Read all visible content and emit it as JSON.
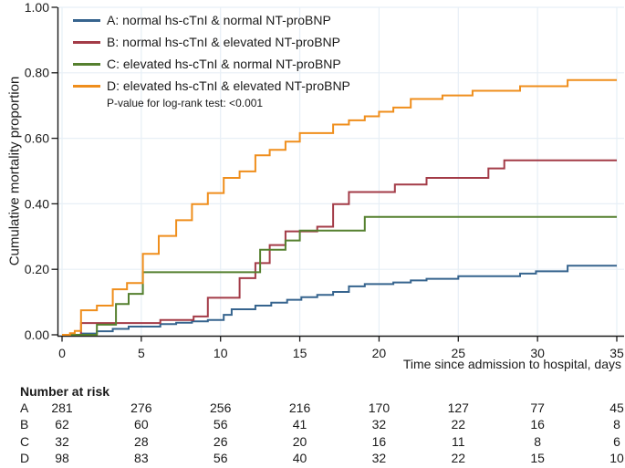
{
  "figure": {
    "kind": "kaplan-meier-cumulative-mortality-plot",
    "background": "#ffffff"
  },
  "colors": {
    "grid": "#e7eff6",
    "axis": "#1a1a1a",
    "text": "#1a1a1a",
    "series_a": "#36648e",
    "series_b": "#a33b47",
    "series_c": "#55802f",
    "series_d": "#ef8e1c"
  },
  "chart_data": {
    "type": "line",
    "subtype": "step-kaplan-meier",
    "title": "",
    "xlabel": "Time since admission to hospital, days",
    "ylabel": "Cumulative mortality proportion",
    "annotation": "P-value for log-rank test: <0.001",
    "xlim": [
      0,
      35
    ],
    "ylim": [
      0,
      1
    ],
    "xticks": [
      0,
      5,
      10,
      15,
      20,
      25,
      30,
      35
    ],
    "yticks": [
      "0.00",
      "0.20",
      "0.40",
      "0.60",
      "0.80",
      "1.00"
    ],
    "grid": true,
    "legend_position": "top-left",
    "series": [
      {
        "id": "A",
        "name": "A: normal hs-cTnI & normal NT-proBNP",
        "color": "#36648e",
        "steps": [
          [
            0,
            0
          ],
          [
            1.2,
            0.004
          ],
          [
            2.2,
            0.011
          ],
          [
            3.2,
            0.018
          ],
          [
            4.2,
            0.025
          ],
          [
            6.2,
            0.033
          ],
          [
            7.2,
            0.037
          ],
          [
            8.2,
            0.041
          ],
          [
            9.2,
            0.045
          ],
          [
            10.2,
            0.061
          ],
          [
            10.7,
            0.078
          ],
          [
            12.2,
            0.089
          ],
          [
            13.2,
            0.098
          ],
          [
            14.2,
            0.107
          ],
          [
            15.1,
            0.115
          ],
          [
            16.1,
            0.122
          ],
          [
            17.1,
            0.131
          ],
          [
            18.1,
            0.148
          ],
          [
            19.1,
            0.155
          ],
          [
            20.9,
            0.16
          ],
          [
            22,
            0.166
          ],
          [
            23,
            0.171
          ],
          [
            25,
            0.179
          ],
          [
            28.9,
            0.187
          ],
          [
            29.9,
            0.194
          ],
          [
            31.9,
            0.211
          ],
          [
            35,
            0.211
          ]
        ]
      },
      {
        "id": "B",
        "name": "B: normal hs-cTnI & elevated NT-proBNP",
        "color": "#a33b47",
        "steps": [
          [
            0,
            0
          ],
          [
            1.2,
            0.036
          ],
          [
            6.2,
            0.045
          ],
          [
            8.3,
            0.056
          ],
          [
            9.2,
            0.113
          ],
          [
            11.2,
            0.173
          ],
          [
            12.2,
            0.219
          ],
          [
            13.1,
            0.274
          ],
          [
            14.1,
            0.316
          ],
          [
            16.1,
            0.33
          ],
          [
            17.1,
            0.399
          ],
          [
            18.1,
            0.436
          ],
          [
            21,
            0.459
          ],
          [
            23,
            0.479
          ],
          [
            26.9,
            0.508
          ],
          [
            27.9,
            0.533
          ],
          [
            35,
            0.533
          ]
        ]
      },
      {
        "id": "C",
        "name": "C: elevated hs-cTnI & normal NT-proBNP",
        "color": "#55802f",
        "steps": [
          [
            0,
            0
          ],
          [
            2.2,
            0.031
          ],
          [
            3.4,
            0.094
          ],
          [
            4.2,
            0.125
          ],
          [
            5.1,
            0.191
          ],
          [
            12.5,
            0.26
          ],
          [
            14.1,
            0.288
          ],
          [
            15,
            0.318
          ],
          [
            19.1,
            0.36
          ],
          [
            35,
            0.36
          ]
        ]
      },
      {
        "id": "D",
        "name": "D: elevated hs-cTnI & elevated NT-proBNP",
        "color": "#ef8e1c",
        "steps": [
          [
            0,
            0
          ],
          [
            0.5,
            0.005
          ],
          [
            0.8,
            0.012
          ],
          [
            1.2,
            0.075
          ],
          [
            2.2,
            0.089
          ],
          [
            3.2,
            0.139
          ],
          [
            4.1,
            0.158
          ],
          [
            5.1,
            0.247
          ],
          [
            6.1,
            0.302
          ],
          [
            7.2,
            0.35
          ],
          [
            8.2,
            0.399
          ],
          [
            9.2,
            0.433
          ],
          [
            10.2,
            0.479
          ],
          [
            11.2,
            0.499
          ],
          [
            12.2,
            0.548
          ],
          [
            13.1,
            0.565
          ],
          [
            14.1,
            0.59
          ],
          [
            15,
            0.616
          ],
          [
            17.1,
            0.642
          ],
          [
            18.1,
            0.655
          ],
          [
            19.1,
            0.667
          ],
          [
            20,
            0.681
          ],
          [
            20.9,
            0.694
          ],
          [
            22,
            0.72
          ],
          [
            24,
            0.731
          ],
          [
            25.9,
            0.745
          ],
          [
            28.9,
            0.759
          ],
          [
            31.9,
            0.778
          ],
          [
            35,
            0.778
          ]
        ]
      }
    ]
  },
  "risk_table": {
    "title": "Number at risk",
    "times": [
      0,
      5,
      10,
      15,
      20,
      25,
      30,
      35
    ],
    "rows": [
      {
        "label": "A",
        "counts": [
          281,
          276,
          256,
          216,
          170,
          127,
          77,
          45
        ]
      },
      {
        "label": "B",
        "counts": [
          62,
          60,
          56,
          41,
          32,
          22,
          16,
          8
        ]
      },
      {
        "label": "C",
        "counts": [
          32,
          28,
          26,
          20,
          16,
          11,
          8,
          6
        ]
      },
      {
        "label": "D",
        "counts": [
          98,
          83,
          56,
          40,
          32,
          22,
          15,
          10
        ]
      }
    ]
  }
}
